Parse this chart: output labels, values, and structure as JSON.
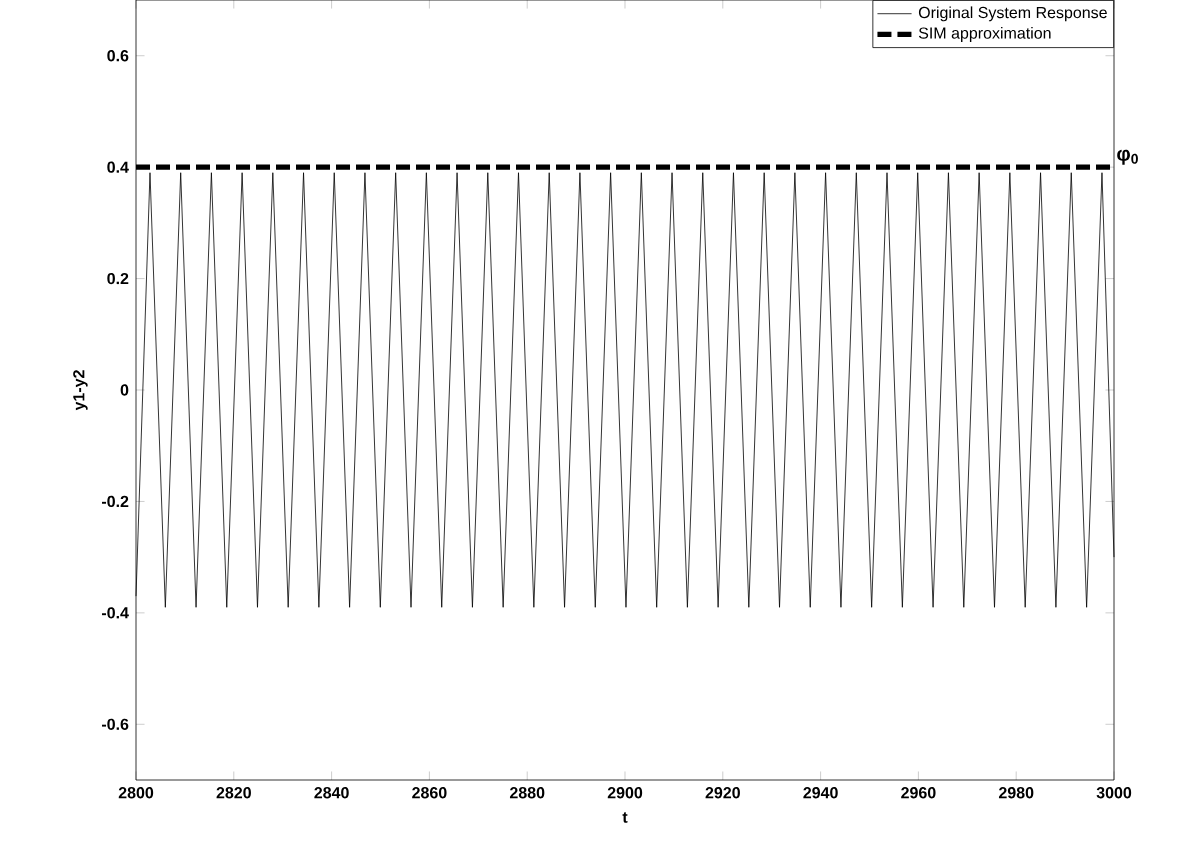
{
  "chart_data": {
    "type": "line",
    "xlabel": "t",
    "ylabel": "y1-y2",
    "xlim": [
      2800,
      3000
    ],
    "ylim": [
      -0.7,
      0.7
    ],
    "xticks": [
      2800,
      2820,
      2840,
      2860,
      2880,
      2900,
      2920,
      2940,
      2960,
      2980,
      3000
    ],
    "yticks": [
      -0.6,
      -0.4,
      -0.2,
      0,
      0.2,
      0.4,
      0.6
    ],
    "legend": "top right",
    "grid": false,
    "series": [
      {
        "name": "Original System Response",
        "color": "#000000",
        "line_style": "solid",
        "x": [
          2800,
          2802.86,
          2806.0,
          2809.14,
          2812.28,
          2815.42,
          2818.56,
          2821.7,
          2824.84,
          2827.98,
          2831.12,
          2834.26,
          2837.4,
          2840.54,
          2843.68,
          2846.82,
          2849.96,
          2853.1,
          2856.24,
          2859.38,
          2862.52,
          2865.66,
          2868.8,
          2871.94,
          2875.08,
          2878.22,
          2881.36,
          2884.5,
          2887.64,
          2890.78,
          2893.92,
          2897.06,
          2900.2,
          2903.34,
          2906.48,
          2909.62,
          2912.76,
          2915.9,
          2919.04,
          2922.18,
          2925.32,
          2928.46,
          2931.6,
          2934.74,
          2937.88,
          2941.02,
          2944.16,
          2947.3,
          2950.44,
          2953.58,
          2956.72,
          2959.86,
          2963.0,
          2966.14,
          2969.28,
          2972.42,
          2975.56,
          2978.7,
          2981.84,
          2984.98,
          2988.12,
          2991.26,
          2994.4,
          2997.54,
          3000
        ],
        "values": [
          -0.37,
          0.39,
          -0.39,
          0.39,
          -0.39,
          0.39,
          -0.39,
          0.39,
          -0.39,
          0.39,
          -0.39,
          0.39,
          -0.39,
          0.39,
          -0.39,
          0.39,
          -0.39,
          0.39,
          -0.39,
          0.39,
          -0.39,
          0.39,
          -0.39,
          0.39,
          -0.39,
          0.39,
          -0.39,
          0.39,
          -0.39,
          0.39,
          -0.39,
          0.39,
          -0.39,
          0.39,
          -0.39,
          0.39,
          -0.39,
          0.39,
          -0.39,
          0.39,
          -0.39,
          0.39,
          -0.39,
          0.39,
          -0.39,
          0.39,
          -0.39,
          0.39,
          -0.39,
          0.39,
          -0.39,
          0.39,
          -0.39,
          0.39,
          -0.39,
          0.39,
          -0.39,
          0.39,
          -0.39,
          0.39,
          -0.39,
          0.39,
          -0.39,
          0.39,
          -0.3
        ]
      },
      {
        "name": "SIM approximation",
        "color": "#000000",
        "line_style": "dashed",
        "x": [
          2800,
          3000
        ],
        "values": [
          0.4,
          0.4
        ]
      }
    ],
    "annotations": [
      {
        "text": "φ$_{0}$",
        "x": 3000,
        "y": 0.4
      }
    ]
  }
}
